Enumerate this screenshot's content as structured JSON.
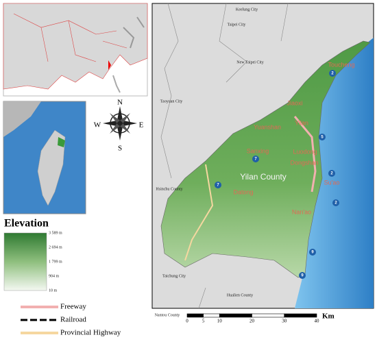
{
  "compass": {
    "north": "N",
    "east": "E",
    "south": "S",
    "west": "W"
  },
  "elevation_legend": {
    "title": "Elevation",
    "labels": [
      "3 589 m",
      "2 694 m",
      "1 799 m",
      "904 m",
      "10 m"
    ]
  },
  "line_legend": [
    "Freeway",
    "Railroad",
    "Provincial Highway"
  ],
  "scale_bar": {
    "unit": "Km",
    "ticks": [
      0,
      5,
      10,
      20,
      30,
      40
    ]
  },
  "map_labels": {
    "keelung": "Keelung City",
    "taipei": "Taipei City",
    "new_taipei": "New Taipei City",
    "toucheng": "Toucheng",
    "taoyuan": "Taoyuan City",
    "jiaoxi": "Jiaoxi",
    "yilan": "Yilan",
    "yuanshan": "Yuanshan",
    "sanxing": "Sanxing",
    "luodong": "Luodong",
    "dongshan": "Dongshan",
    "county": "Yilan County",
    "suao": "Su'ao",
    "hsinchu": "Hsinchu County",
    "datong": "Datong",
    "nanao": "Nan'ao",
    "taichung": "Taichung City",
    "hualien": "Hualien County",
    "nantou": "Nantou County"
  },
  "route_shields": [
    "2",
    "5",
    "2",
    "2",
    "9",
    "7",
    "7",
    "9"
  ]
}
